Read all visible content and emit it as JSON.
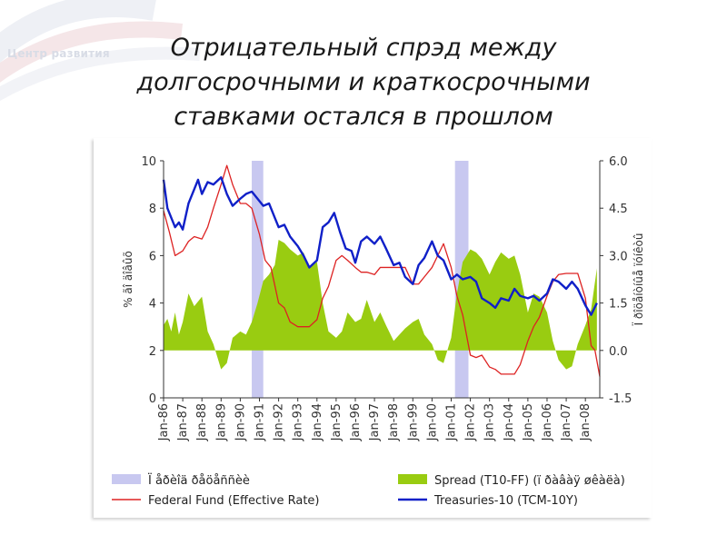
{
  "brand": {
    "label": "Центр развития"
  },
  "slide": {
    "title_line1": "Отрицательный спрэд между",
    "title_line2": "долгосрочными и краткосрочными",
    "title_line3": "ставками остался в прошлом"
  },
  "colors": {
    "recession": "#c8c8f0",
    "spread": "#99cc11",
    "fed_funds": "#dd2222",
    "treasuries": "#1020c8",
    "axis": "#333333"
  },
  "chart_data": {
    "type": "line",
    "x_unit": "year",
    "x_ticks": [
      "Jan-86",
      "Jan-87",
      "Jan-88",
      "Jan-89",
      "Jan-90",
      "Jan-91",
      "Jan-92",
      "Jan-93",
      "Jan-94",
      "Jan-95",
      "Jan-96",
      "Jan-97",
      "Jan-98",
      "Jan-99",
      "Jan-00",
      "Jan-01",
      "Jan-02",
      "Jan-03",
      "Jan-04",
      "Jan-05",
      "Jan-06",
      "Jan-07",
      "Jan-08"
    ],
    "x_tick_values": [
      1986,
      1987,
      1988,
      1989,
      1990,
      1991,
      1992,
      1993,
      1994,
      1995,
      1996,
      1997,
      1998,
      1999,
      2000,
      2001,
      2002,
      2003,
      2004,
      2005,
      2006,
      2007,
      2008
    ],
    "xlim": [
      1986,
      2008.75
    ],
    "ylabel_left": "% ãî äîâûõ",
    "ylabel_right": "Ï ðîöåíòíûå ïóíêòû",
    "ylim_left": [
      0,
      10
    ],
    "yticks_left": [
      "0",
      "2",
      "4",
      "6",
      "8",
      "10"
    ],
    "ylim_right": [
      -1.5,
      6.0
    ],
    "yticks_right": [
      "-1.5",
      "0.0",
      "1.5",
      "3.0",
      "4.5",
      "6.0"
    ],
    "grid": false,
    "legend_position": "bottom",
    "legend": [
      {
        "label": "Ï åðèîä ðåöåññèè",
        "kind": "box",
        "color": "#c8c8f0"
      },
      {
        "label": "Spread (T10-FF) (ï ðàâàÿ øêàëà)",
        "kind": "box",
        "color": "#99cc11"
      },
      {
        "label": "Federal Fund (Effective Rate)",
        "kind": "line",
        "color": "#dd2222"
      },
      {
        "label": "Treasuries-10 (TCM-10Y)",
        "kind": "line",
        "color": "#1020c8"
      }
    ],
    "recessions": [
      [
        1990.6,
        1991.2
      ],
      [
        2001.2,
        2001.9
      ]
    ],
    "series": [
      {
        "name": "Spread (T10-FF) (ï ðàâàÿ øêàëà)",
        "type": "area",
        "axis": "right",
        "x": [
          1986,
          1986.2,
          1986.4,
          1986.6,
          1986.8,
          1987,
          1987.3,
          1987.6,
          1988,
          1988.3,
          1988.6,
          1989,
          1989.3,
          1989.6,
          1990,
          1990.3,
          1990.6,
          1990.9,
          1991.2,
          1991.5,
          1991.8,
          1992,
          1992.3,
          1992.6,
          1993,
          1993.3,
          1993.6,
          1994,
          1994.3,
          1994.6,
          1995,
          1995.3,
          1995.6,
          1996,
          1996.3,
          1996.6,
          1997,
          1997.3,
          1997.6,
          1998,
          1998.3,
          1998.6,
          1999,
          1999.3,
          1999.6,
          2000,
          2000.3,
          2000.6,
          2001,
          2001.3,
          2001.6,
          2002,
          2002.3,
          2002.6,
          2003,
          2003.3,
          2003.6,
          2004,
          2004.3,
          2004.6,
          2005,
          2005.3,
          2005.6,
          2006,
          2006.3,
          2006.6,
          2007,
          2007.3,
          2007.6,
          2008,
          2008.3,
          2008.6
        ],
        "y": [
          0.8,
          1.0,
          0.6,
          1.2,
          0.5,
          0.9,
          1.8,
          1.4,
          1.7,
          0.6,
          0.2,
          -0.6,
          -0.4,
          0.4,
          0.6,
          0.5,
          0.9,
          1.5,
          2.2,
          2.4,
          2.7,
          3.5,
          3.4,
          3.2,
          3.0,
          3.1,
          2.6,
          2.8,
          1.5,
          0.6,
          0.4,
          0.6,
          1.2,
          0.9,
          1.0,
          1.6,
          0.9,
          1.2,
          0.8,
          0.3,
          0.5,
          0.7,
          0.9,
          1.0,
          0.5,
          0.2,
          -0.3,
          -0.4,
          0.4,
          1.8,
          2.8,
          3.2,
          3.1,
          2.9,
          2.4,
          2.8,
          3.1,
          2.9,
          3.0,
          2.4,
          1.2,
          1.8,
          1.7,
          1.2,
          0.3,
          -0.3,
          -0.6,
          -0.5,
          0.2,
          0.8,
          1.3,
          2.6
        ]
      },
      {
        "name": "Federal Fund (Effective Rate)",
        "type": "line",
        "axis": "left",
        "x": [
          1986,
          1986.3,
          1986.6,
          1987,
          1987.3,
          1987.6,
          1988,
          1988.3,
          1988.6,
          1989,
          1989.3,
          1989.6,
          1990,
          1990.3,
          1990.6,
          1991,
          1991.3,
          1991.6,
          1992,
          1992.3,
          1992.6,
          1993,
          1993.3,
          1993.6,
          1994,
          1994.3,
          1994.6,
          1995,
          1995.3,
          1995.6,
          1996,
          1996.3,
          1996.6,
          1997,
          1997.3,
          1997.6,
          1998,
          1998.3,
          1998.6,
          1999,
          1999.3,
          1999.6,
          2000,
          2000.3,
          2000.6,
          2001,
          2001.3,
          2001.6,
          2002,
          2002.3,
          2002.6,
          2003,
          2003.3,
          2003.6,
          2004,
          2004.3,
          2004.6,
          2005,
          2005.3,
          2005.6,
          2006,
          2006.3,
          2006.6,
          2007,
          2007.3,
          2007.6,
          2008,
          2008.3,
          2008.5,
          2008.75
        ],
        "y": [
          7.9,
          7.0,
          6.0,
          6.2,
          6.6,
          6.8,
          6.7,
          7.2,
          8.0,
          9.0,
          9.8,
          9.0,
          8.2,
          8.2,
          8.0,
          6.9,
          5.8,
          5.5,
          4.0,
          3.8,
          3.2,
          3.0,
          3.0,
          3.0,
          3.3,
          4.2,
          4.7,
          5.8,
          6.0,
          5.8,
          5.5,
          5.3,
          5.3,
          5.2,
          5.5,
          5.5,
          5.5,
          5.5,
          5.5,
          4.8,
          4.8,
          5.1,
          5.5,
          6.0,
          6.5,
          5.5,
          4.3,
          3.5,
          1.8,
          1.7,
          1.8,
          1.3,
          1.2,
          1.0,
          1.0,
          1.0,
          1.4,
          2.4,
          3.0,
          3.4,
          4.3,
          4.9,
          5.2,
          5.25,
          5.25,
          5.25,
          4.2,
          2.2,
          2.0,
          0.9
        ]
      },
      {
        "name": "Treasuries-10 (TCM-10Y)",
        "type": "line",
        "axis": "left",
        "x": [
          1986,
          1986.2,
          1986.4,
          1986.6,
          1986.8,
          1987,
          1987.3,
          1987.6,
          1987.8,
          1988,
          1988.3,
          1988.6,
          1989,
          1989.3,
          1989.6,
          1990,
          1990.3,
          1990.6,
          1990.9,
          1991.2,
          1991.5,
          1991.8,
          1992,
          1992.3,
          1992.6,
          1993,
          1993.3,
          1993.6,
          1994,
          1994.3,
          1994.6,
          1994.9,
          1995.2,
          1995.5,
          1995.8,
          1996,
          1996.3,
          1996.6,
          1997,
          1997.3,
          1997.6,
          1998,
          1998.3,
          1998.6,
          1999,
          1999.3,
          1999.6,
          2000,
          2000.3,
          2000.6,
          2001,
          2001.3,
          2001.6,
          2002,
          2002.3,
          2002.6,
          2003,
          2003.3,
          2003.6,
          2004,
          2004.3,
          2004.6,
          2005,
          2005.3,
          2005.6,
          2006,
          2006.3,
          2006.6,
          2007,
          2007.3,
          2007.6,
          2008,
          2008.3,
          2008.6
        ],
        "y": [
          9.2,
          8.0,
          7.6,
          7.2,
          7.4,
          7.1,
          8.2,
          8.8,
          9.2,
          8.6,
          9.1,
          9.0,
          9.3,
          8.6,
          8.1,
          8.4,
          8.6,
          8.7,
          8.4,
          8.1,
          8.2,
          7.6,
          7.2,
          7.3,
          6.8,
          6.4,
          6.0,
          5.5,
          5.8,
          7.2,
          7.4,
          7.8,
          7.0,
          6.3,
          6.2,
          5.7,
          6.6,
          6.8,
          6.5,
          6.8,
          6.3,
          5.6,
          5.7,
          5.1,
          4.8,
          5.6,
          5.9,
          6.6,
          6.0,
          5.8,
          5.0,
          5.2,
          5.0,
          5.1,
          4.9,
          4.2,
          4.0,
          3.8,
          4.2,
          4.1,
          4.6,
          4.3,
          4.2,
          4.3,
          4.1,
          4.4,
          5.0,
          4.9,
          4.6,
          4.9,
          4.6,
          3.9,
          3.5,
          4.0
        ]
      }
    ]
  }
}
